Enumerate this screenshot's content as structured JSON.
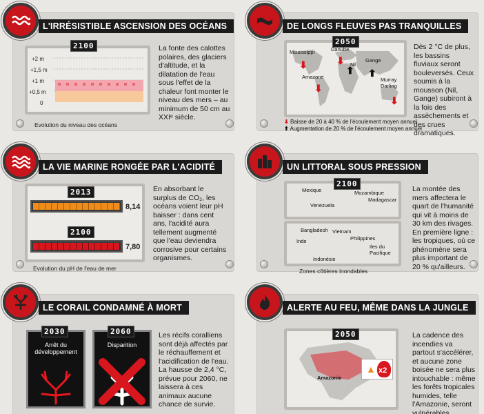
{
  "colors": {
    "red": "#c8151b",
    "orange": "#f08c1a",
    "dark": "#1b1b1b",
    "panel": "#d9d7d3"
  },
  "oceans": {
    "icon": "waves-icon",
    "title": "L'IRRÉSISTIBLE ASCENSION DES OCÉANS",
    "year": "2100",
    "ticks": [
      "+2 m",
      "+1,5 m",
      "+1 m",
      "+0,5 m",
      "0"
    ],
    "text": "La fonte des calottes polaires, des glaciers d'altitude, et la dilatation de l'eau sous l'effet de la chaleur font monter le niveau des mers – au minimum de 50 cm au XXIᵉ siècle.",
    "caption": "Evolution du niveau des océans",
    "level_range_m": [
      0.5,
      1.0
    ]
  },
  "rivers": {
    "icon": "river-icon",
    "title": "DE LONGS FLEUVES PAS TRANQUILLES",
    "year": "2050",
    "labels": [
      "Mississippi",
      "Danube",
      "Nil",
      "Gange",
      "Amazone",
      "Murray Darling"
    ],
    "text": "Dès 2 °C de plus, les bassins fluviaux seront bouleversés. Ceux soumis à la mousson (Nil, Gange) subiront à la fois des assèchements et des crues dramatiques.",
    "legend_down": "Baisse de 20 à 40 % de l'écoulement moyen annuel",
    "legend_up": "Augmentation de 20 % de l'écoulement moyen annuel"
  },
  "acid": {
    "icon": "acid-waves-icon",
    "title": "LA VIE MARINE RONGÉE PAR L'ACIDITÉ",
    "bars": [
      {
        "year": "2013",
        "value": "8,14",
        "color": "#f08c1a"
      },
      {
        "year": "2100",
        "value": "7,80",
        "color": "#d8161d"
      }
    ],
    "text": "En absorbant le surplus de CO₂, les océans voient leur pH baisser : dans cent ans, l'acidité aura tellement augmenté que l'eau deviendra corrosive pour certains organismes.",
    "caption": "Evolution du pH de l'eau de mer"
  },
  "coast": {
    "icon": "buildings-icon",
    "title": "UN LITTORAL SOUS PRESSION",
    "year": "2100",
    "labels_top": [
      "Mexique",
      "Venezuela",
      "Mozambique",
      "Madagascar"
    ],
    "labels_bottom": [
      "Bangladesh",
      "Vietnam",
      "Inde",
      "Philippines",
      "Iles du Pacifique",
      "Indonésie"
    ],
    "text": "La montée des mers affectera le quart de l'humanité qui vit à moins de 30 km des rivages. En première ligne : les tropiques, où ce phénomène sera plus important de 20 % qu'ailleurs.",
    "caption": "Zones côtières inondables"
  },
  "coral": {
    "icon": "coral-icon",
    "title": "LE CORAIL CONDAMNÉ À MORT",
    "cards": [
      {
        "year": "2030",
        "label": "Arrêt du développement"
      },
      {
        "year": "2060",
        "label": "Disparition"
      }
    ],
    "text": "Les récifs coralliens sont déjà affectés par le réchauffement et l'acidification de l'eau. La hausse de 2,4 °C, prévue pour 2060, ne laissera à ces animaux aucune chance de survie."
  },
  "fire": {
    "icon": "flame-icon",
    "title": "ALERTE AU FEU, MÊME DANS LA JUNGLE",
    "year": "2050",
    "region": "Amazonie",
    "multiplier": "x2",
    "text": "La cadence des incendies va partout s'accélérer, et aucune zone boisée ne sera plus intouchable : même les forêts tropicales humides, telle l'Amazonie, seront vulnérables."
  }
}
